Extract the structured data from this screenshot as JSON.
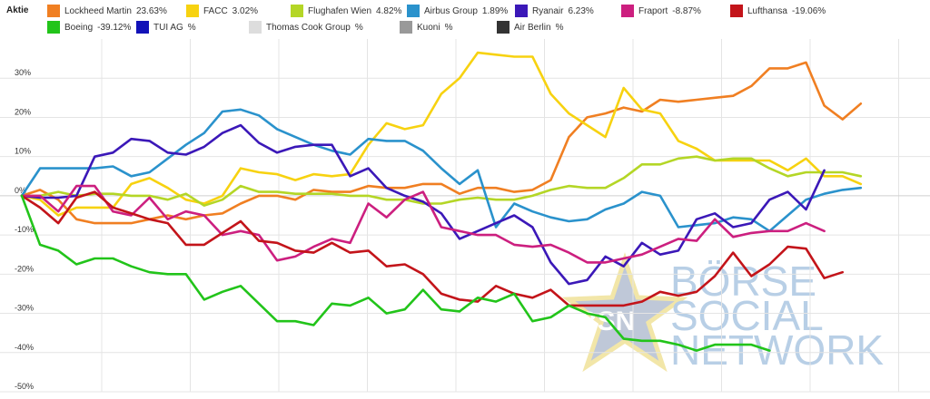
{
  "legend": {
    "header": "Aktie",
    "items": [
      {
        "name": "Lockheed Martin",
        "pct": "23.63%",
        "color": "#f07f22"
      },
      {
        "name": "FACC",
        "pct": "3.02%",
        "color": "#f7d210"
      },
      {
        "name": "Flughafen Wien",
        "pct": "4.82%",
        "color": "#b4d626"
      },
      {
        "name": "Airbus Group",
        "pct": "1.89%",
        "color": "#2a92cc"
      },
      {
        "name": "Ryanair",
        "pct": "6.23%",
        "color": "#3b18b8"
      },
      {
        "name": "Fraport",
        "pct": "-8.87%",
        "color": "#cc1f7f"
      },
      {
        "name": "Lufthansa",
        "pct": "-19.06%",
        "color": "#c3141a"
      },
      {
        "name": "Boeing",
        "pct": "-39.12%",
        "color": "#22c41a"
      },
      {
        "name": "TUI AG",
        "pct": "",
        "color": "#1212b8"
      },
      {
        "name": "Thomas Cook Group",
        "pct": "",
        "color": "#dddddd"
      },
      {
        "name": "Kuoni",
        "pct": "",
        "color": "#999999"
      },
      {
        "name": "Air Berlin",
        "pct": "",
        "color": "#333333"
      }
    ]
  },
  "watermark": {
    "bsn": "BSN",
    "line1": "BÖRSE",
    "line2": "SOCIAL",
    "line3": "NETWORK"
  },
  "chart_data": {
    "type": "line",
    "ylim": [
      -50,
      40
    ],
    "yticks": [
      30,
      20,
      10,
      0,
      -10,
      -20,
      -30,
      -40,
      -50
    ],
    "ytick_labels": [
      "30%",
      "20%",
      "10%",
      "0%",
      "-10%",
      "-20%",
      "-30%",
      "-40%",
      "-50%"
    ],
    "grid": true,
    "x": [
      0,
      1,
      2,
      3,
      4,
      5,
      6,
      7,
      8,
      9,
      10,
      11,
      12,
      13,
      14,
      15,
      16,
      17,
      18,
      19,
      20,
      21,
      22,
      23,
      24,
      25,
      26,
      27,
      28,
      29,
      30,
      31,
      32,
      33,
      34,
      35,
      36,
      37,
      38,
      39,
      40,
      41,
      42,
      43,
      44,
      45,
      46,
      47,
      48,
      49
    ],
    "series": [
      {
        "name": "Lockheed Martin",
        "color": "#f07f22",
        "values": [
          0,
          1.5,
          -1,
          -6,
          -7,
          -7,
          -7,
          -6,
          -5,
          -6,
          -5,
          -4.5,
          -2,
          0,
          0,
          -1,
          1.5,
          1,
          1,
          2.5,
          2,
          2,
          3,
          3,
          0.5,
          2,
          2,
          1,
          1.5,
          4,
          15,
          20,
          21,
          22.5,
          21.5,
          24.5,
          24,
          24.5,
          25,
          25.5,
          28,
          32.5,
          32.5,
          34,
          23,
          19.5,
          23.5,
          null,
          null,
          null
        ]
      },
      {
        "name": "FACC",
        "color": "#f7d210",
        "values": [
          0,
          -1,
          -5,
          -3,
          -3,
          -3,
          3,
          4.5,
          2,
          -1,
          -2,
          0,
          7,
          6,
          5.5,
          4,
          5.5,
          5,
          5.5,
          13,
          18.5,
          17,
          18,
          26,
          30,
          36.5,
          36,
          35.5,
          35.5,
          26,
          21,
          18,
          15,
          27.5,
          22,
          21,
          14,
          12,
          9,
          9,
          9,
          9,
          6.5,
          9.5,
          5,
          5,
          3,
          null,
          null,
          null
        ]
      },
      {
        "name": "Flughafen Wien",
        "color": "#b4d626",
        "values": [
          0,
          0,
          1,
          0,
          0.5,
          0.5,
          0,
          0,
          -1,
          0.5,
          -2.5,
          -1,
          2.5,
          1,
          1,
          0.5,
          0.5,
          0.5,
          0,
          0,
          -1,
          -1,
          -2,
          -2,
          -1,
          -0.5,
          -1,
          -1,
          0,
          1.5,
          2.5,
          2,
          2,
          4.5,
          8,
          8,
          9.5,
          10,
          9,
          9.5,
          9.5,
          7,
          5,
          6,
          6,
          6,
          5,
          null,
          null,
          null
        ]
      },
      {
        "name": "Airbus Group",
        "color": "#2a92cc",
        "values": [
          0,
          7,
          7,
          7,
          7,
          7.5,
          5,
          6,
          9.5,
          13,
          16,
          21.5,
          22,
          20.5,
          17,
          15,
          13,
          11.5,
          10.5,
          14.5,
          14,
          14,
          11.5,
          7,
          3,
          6.5,
          -8,
          -2,
          -4,
          -5.5,
          -6.5,
          -6,
          -3.5,
          -2,
          1,
          0,
          -8,
          -7.5,
          -7,
          -5.5,
          -6,
          -9,
          -5,
          -1,
          0.5,
          1.5,
          2,
          null,
          null,
          null
        ]
      },
      {
        "name": "Ryanair",
        "color": "#3b18b8",
        "values": [
          0,
          -0.5,
          -0.5,
          0,
          10,
          11,
          14.5,
          14,
          11,
          10.5,
          12.5,
          16,
          18,
          13.5,
          11,
          12.5,
          13,
          13,
          5,
          7,
          2,
          0,
          -1.5,
          -4.5,
          -11,
          -9,
          -7,
          -5,
          -8,
          -17,
          -22.5,
          -21.5,
          -15.5,
          -18,
          -12,
          -15,
          -14,
          -6,
          -4.5,
          -8,
          -7,
          -1,
          1,
          -3.5,
          6.5,
          null,
          null,
          null,
          null,
          null
        ]
      },
      {
        "name": "Fraport",
        "color": "#cc1f7f",
        "values": [
          0,
          0,
          -4,
          2.5,
          2.5,
          -4,
          -5,
          -0.5,
          -6,
          -4,
          -5,
          -10,
          -9,
          -10,
          -16.5,
          -15.5,
          -13,
          -11,
          -12,
          -2,
          -5.5,
          -1,
          1,
          -8,
          -9,
          -10,
          -10,
          -12.5,
          -13,
          -12.5,
          -14.5,
          -17,
          -17,
          -16,
          -15,
          -13,
          -11,
          -11.5,
          -6,
          -10.5,
          -9.5,
          -9,
          -9,
          -7,
          -9,
          null,
          null,
          null,
          null,
          null
        ]
      },
      {
        "name": "Lufthansa",
        "color": "#c3141a",
        "values": [
          0,
          -3,
          -7,
          -0.5,
          1,
          -3,
          -4.5,
          -6,
          -7,
          -12.5,
          -12.5,
          -9.5,
          -6.5,
          -11.5,
          -12,
          -14,
          -14.5,
          -12,
          -14.5,
          -14,
          -18,
          -17.5,
          -20,
          -25,
          -26.5,
          -27,
          -23,
          -25,
          -26,
          -24,
          -28,
          -28,
          -28,
          -28,
          -27,
          -24.5,
          -25.5,
          -24.5,
          -20.5,
          -14.5,
          -20.5,
          -17.5,
          -13,
          -13.5,
          -21,
          -19.5,
          null,
          null,
          null,
          null
        ]
      },
      {
        "name": "Boeing",
        "color": "#22c41a",
        "values": [
          0,
          -12.5,
          -14,
          -17.5,
          -16,
          -16,
          -18,
          -19.5,
          -20,
          -20,
          -26.5,
          -24.5,
          -23,
          -27.5,
          -32,
          -32,
          -33,
          -27.5,
          -28,
          -26,
          -30,
          -29,
          -24,
          -29,
          -29.5,
          -26,
          -27,
          -25,
          -32,
          -31,
          -28,
          -30,
          -31,
          -36.5,
          -37,
          -37,
          -38,
          -39.5,
          -38,
          -38,
          -38,
          -39.5,
          null,
          null,
          null,
          null,
          null,
          null,
          null,
          null
        ]
      }
    ]
  }
}
